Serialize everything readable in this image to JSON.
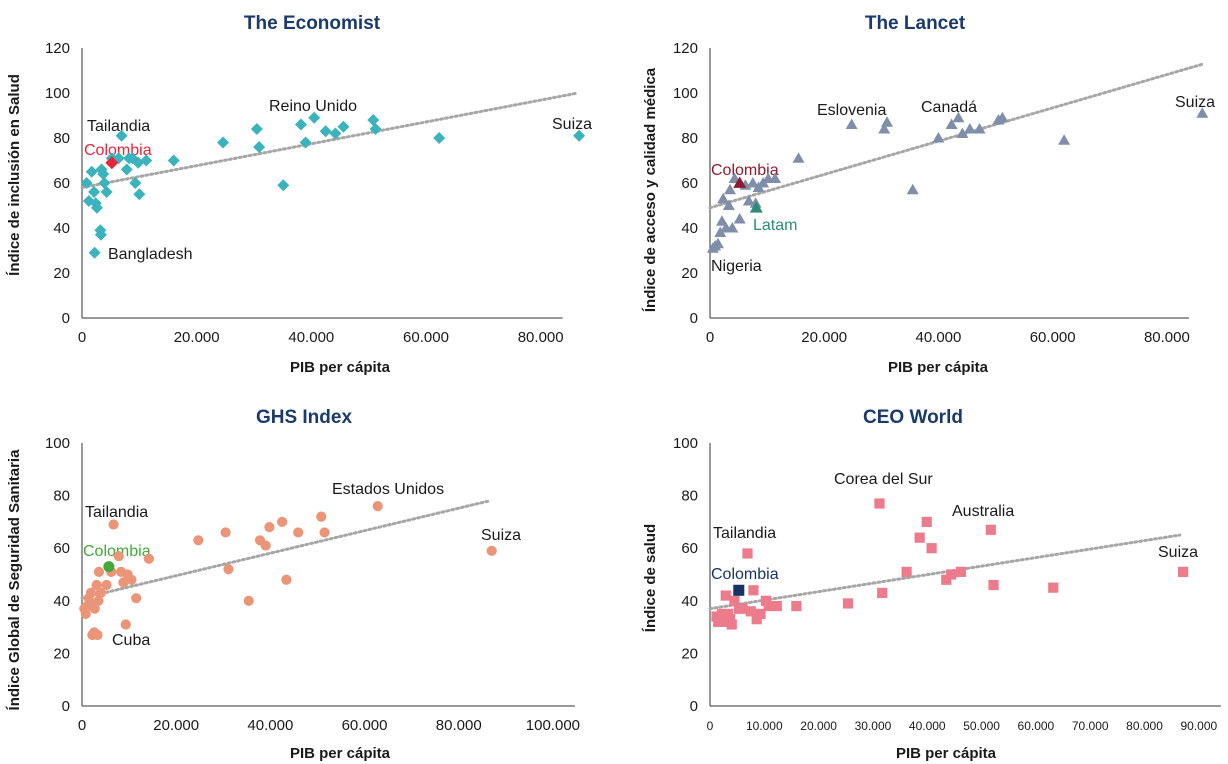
{
  "chart_data": [
    {
      "type": "scatter",
      "title": "The Economist",
      "xlabel": "PIB per cápita",
      "ylabel": "Índice de inclusión en Salud",
      "xlim": [
        0,
        90000
      ],
      "ylim": [
        0,
        120
      ],
      "xticks": [
        0,
        20000,
        40000,
        60000,
        80000
      ],
      "xtick_labels": [
        "0",
        "20.000",
        "40.000",
        "60.000",
        "80.000"
      ],
      "yticks": [
        0,
        20,
        40,
        60,
        80,
        100,
        120
      ],
      "marker": "diamond",
      "color": "#3bb3bd",
      "trendline": {
        "x": [
          0,
          86500
        ],
        "y": [
          58,
          100
        ]
      },
      "points": [
        [
          800,
          60
        ],
        [
          1200,
          52
        ],
        [
          1700,
          65
        ],
        [
          2100,
          56
        ],
        [
          2400,
          51
        ],
        [
          2600,
          49
        ],
        [
          3200,
          39
        ],
        [
          3300,
          37
        ],
        [
          3400,
          66
        ],
        [
          3700,
          64
        ],
        [
          3900,
          60
        ],
        [
          4300,
          56
        ],
        [
          5200,
          71
        ],
        [
          6400,
          71
        ],
        [
          6900,
          81
        ],
        [
          7800,
          66
        ],
        [
          8200,
          71
        ],
        [
          8800,
          71
        ],
        [
          9300,
          60
        ],
        [
          9800,
          69
        ],
        [
          10000,
          55
        ],
        [
          11200,
          70
        ],
        [
          16000,
          70
        ],
        [
          24600,
          78
        ],
        [
          30500,
          84
        ],
        [
          30900,
          76
        ],
        [
          35100,
          59
        ],
        [
          38200,
          86
        ],
        [
          39000,
          78
        ],
        [
          40500,
          89
        ],
        [
          42500,
          83
        ],
        [
          44200,
          82
        ],
        [
          45600,
          85
        ],
        [
          50800,
          88
        ],
        [
          51200,
          84
        ],
        [
          62300,
          80
        ],
        [
          86700,
          81
        ],
        [
          2200,
          29
        ]
      ],
      "highlight": {
        "x": 5200,
        "y": 69,
        "label": "Colombia",
        "color": "#e3263b"
      },
      "annotations": [
        "Tailandia",
        "Bangladesh",
        "Reino Unido",
        "Suiza"
      ]
    },
    {
      "type": "scatter",
      "title": "The Lancet",
      "xlabel": "PIB per cápita",
      "ylabel": "Índice de acceso y calidad médica",
      "xlim": [
        0,
        90000
      ],
      "ylim": [
        0,
        120
      ],
      "xticks": [
        0,
        20000,
        40000,
        60000,
        80000
      ],
      "xtick_labels": [
        "0",
        "20.000",
        "40.000",
        "60.000",
        "80.000"
      ],
      "yticks": [
        0,
        20,
        40,
        60,
        80,
        100,
        120
      ],
      "marker": "triangle",
      "color": "#7f8faa",
      "trendline": {
        "x": [
          0,
          86500
        ],
        "y": [
          49,
          113
        ]
      },
      "points": [
        [
          500,
          31
        ],
        [
          900,
          32
        ],
        [
          1400,
          33
        ],
        [
          1800,
          38
        ],
        [
          2100,
          43
        ],
        [
          2300,
          53
        ],
        [
          2800,
          40
        ],
        [
          3300,
          50
        ],
        [
          3500,
          57
        ],
        [
          3900,
          40
        ],
        [
          4300,
          62
        ],
        [
          5200,
          44
        ],
        [
          6200,
          59
        ],
        [
          6800,
          52
        ],
        [
          7500,
          60
        ],
        [
          8000,
          51
        ],
        [
          8500,
          58
        ],
        [
          9300,
          60
        ],
        [
          10200,
          62
        ],
        [
          11400,
          62
        ],
        [
          15500,
          71
        ],
        [
          24800,
          86
        ],
        [
          30500,
          84
        ],
        [
          31000,
          87
        ],
        [
          35500,
          57
        ],
        [
          42300,
          86
        ],
        [
          43500,
          89
        ],
        [
          44200,
          82
        ],
        [
          45500,
          84
        ],
        [
          47200,
          84
        ],
        [
          50500,
          88
        ],
        [
          51200,
          89
        ],
        [
          62000,
          79
        ],
        [
          86200,
          91
        ],
        [
          40000,
          80
        ]
      ],
      "highlight": {
        "x": 5200,
        "y": 60,
        "label": "Colombia",
        "color": "#8d1c31"
      },
      "highlight2": {
        "x": 8100,
        "y": 49,
        "label": "Latam",
        "color": "#2e8b7a"
      },
      "annotations": [
        "Eslovenia",
        "Canadá",
        "Suiza",
        "Nigeria"
      ]
    },
    {
      "type": "scatter",
      "title": "GHS Index",
      "xlabel": "PIB per cápita",
      "ylabel": "Índice Global de Seguridad Sanitaria",
      "xlim": [
        0,
        110000
      ],
      "ylim": [
        0,
        100
      ],
      "xticks": [
        0,
        20000,
        40000,
        60000,
        80000,
        100000
      ],
      "xtick_labels": [
        "0",
        "20.000",
        "40.000",
        "60.000",
        "80.000",
        "100.000"
      ],
      "yticks": [
        0,
        20,
        40,
        60,
        80,
        100
      ],
      "marker": "circle",
      "color": "#eb9578",
      "trendline": {
        "x": [
          0,
          86500
        ],
        "y": [
          41,
          78
        ]
      },
      "points": [
        [
          500,
          37
        ],
        [
          800,
          35
        ],
        [
          1100,
          38
        ],
        [
          1400,
          41
        ],
        [
          1700,
          39
        ],
        [
          1900,
          43
        ],
        [
          2200,
          27
        ],
        [
          2600,
          28
        ],
        [
          2700,
          37
        ],
        [
          3100,
          46
        ],
        [
          3300,
          27
        ],
        [
          3500,
          40
        ],
        [
          3600,
          51
        ],
        [
          4000,
          43
        ],
        [
          5200,
          46
        ],
        [
          6200,
          51
        ],
        [
          6700,
          69
        ],
        [
          7800,
          57
        ],
        [
          8300,
          51
        ],
        [
          8800,
          47
        ],
        [
          9300,
          31
        ],
        [
          9700,
          50
        ],
        [
          10500,
          48
        ],
        [
          11500,
          41
        ],
        [
          14200,
          56
        ],
        [
          24700,
          63
        ],
        [
          30500,
          66
        ],
        [
          31100,
          52
        ],
        [
          35400,
          40
        ],
        [
          37800,
          63
        ],
        [
          39000,
          61
        ],
        [
          39800,
          68
        ],
        [
          42500,
          70
        ],
        [
          43400,
          48
        ],
        [
          45900,
          66
        ],
        [
          50800,
          72
        ],
        [
          51500,
          66
        ],
        [
          62800,
          76
        ],
        [
          87000,
          59
        ]
      ],
      "highlight": {
        "x": 5700,
        "y": 53,
        "label": "Colombia",
        "color": "#45a83a"
      },
      "annotations": [
        "Tailandia",
        "Cuba",
        "Estados Unidos",
        "Suiza"
      ]
    },
    {
      "type": "scatter",
      "title": "CEO World",
      "xlabel": "PIB per cápita",
      "ylabel": "Índice de salud",
      "xlim": [
        0,
        95000
      ],
      "ylim": [
        0,
        100
      ],
      "xticks": [
        0,
        10000,
        20000,
        30000,
        40000,
        50000,
        60000,
        70000,
        80000,
        90000
      ],
      "xtick_labels": [
        "0",
        "10.000",
        "20.000",
        "30.000",
        "40.000",
        "50.000",
        "60.000",
        "70.000",
        "80.000",
        "90.000"
      ],
      "yticks": [
        0,
        20,
        40,
        60,
        80,
        100
      ],
      "marker": "square",
      "color": "#ec7b8c",
      "trendline": {
        "x": [
          0,
          86500
        ],
        "y": [
          37,
          65
        ]
      },
      "points": [
        [
          1200,
          34
        ],
        [
          1500,
          32
        ],
        [
          1900,
          33
        ],
        [
          2200,
          35
        ],
        [
          2500,
          32
        ],
        [
          2900,
          42
        ],
        [
          3300,
          35
        ],
        [
          3700,
          33
        ],
        [
          4000,
          31
        ],
        [
          4500,
          40
        ],
        [
          5300,
          37
        ],
        [
          6000,
          37
        ],
        [
          6900,
          58
        ],
        [
          7500,
          36
        ],
        [
          8000,
          44
        ],
        [
          8600,
          33
        ],
        [
          9300,
          35
        ],
        [
          10300,
          40
        ],
        [
          10800,
          38
        ],
        [
          12300,
          38
        ],
        [
          15900,
          38
        ],
        [
          25400,
          39
        ],
        [
          31200,
          77
        ],
        [
          31700,
          43
        ],
        [
          36200,
          51
        ],
        [
          38600,
          64
        ],
        [
          39900,
          70
        ],
        [
          40800,
          60
        ],
        [
          43500,
          48
        ],
        [
          44400,
          50
        ],
        [
          46200,
          51
        ],
        [
          51700,
          67
        ],
        [
          52200,
          46
        ],
        [
          63200,
          45
        ],
        [
          87100,
          51
        ]
      ],
      "highlight": {
        "x": 5300,
        "y": 44,
        "label": "Colombia",
        "color": "#1a3366"
      },
      "annotations": [
        "Tailandia",
        "Corea del Sur",
        "Australia",
        "Suiza"
      ]
    }
  ],
  "theme": {
    "title_color": "#1a3a6b",
    "axis_color": "#333333",
    "trend_color": "#a6a6a6",
    "annotation_color": "#1a1a1a"
  }
}
